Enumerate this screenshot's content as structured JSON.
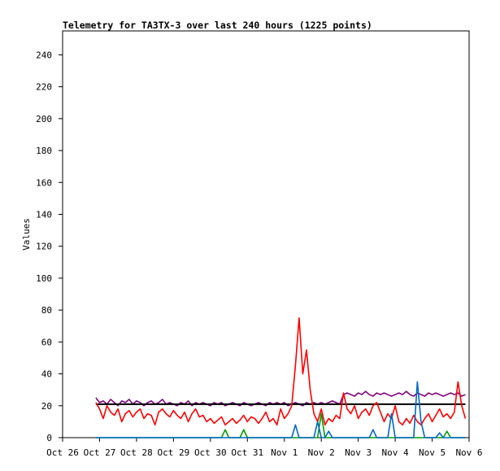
{
  "chart_data": {
    "type": "line",
    "title": "Telemetry for TA3TX-3 over last 240 hours (1225 points)",
    "y_label": "Values",
    "xlim": [
      0,
      11
    ],
    "xticks": [
      {
        "value": 0,
        "label": "Oct 26"
      },
      {
        "value": 1,
        "label": "Oct 27"
      },
      {
        "value": 2,
        "label": "Oct 28"
      },
      {
        "value": 3,
        "label": "Oct 29"
      },
      {
        "value": 4,
        "label": "Oct 30"
      },
      {
        "value": 5,
        "label": "Oct 31"
      },
      {
        "value": 6,
        "label": "Nov 1"
      },
      {
        "value": 7,
        "label": "Nov 2"
      },
      {
        "value": 8,
        "label": "Nov 3"
      },
      {
        "value": 9,
        "label": "Nov 4"
      },
      {
        "value": 10,
        "label": "Nov 5"
      },
      {
        "value": 11,
        "label": "Nov 6"
      }
    ],
    "ylim": [
      0,
      255
    ],
    "yticks": [
      0,
      20,
      40,
      60,
      80,
      100,
      120,
      140,
      160,
      180,
      200,
      220,
      240
    ],
    "x": [
      0.9,
      1,
      1.1,
      1.2,
      1.3,
      1.4,
      1.5,
      1.6,
      1.7,
      1.8,
      1.9,
      2,
      2.1,
      2.2,
      2.3,
      2.4,
      2.5,
      2.6,
      2.7,
      2.8,
      2.9,
      3,
      3.1,
      3.2,
      3.3,
      3.4,
      3.5,
      3.6,
      3.7,
      3.8,
      3.9,
      4,
      4.1,
      4.2,
      4.3,
      4.4,
      4.5,
      4.6,
      4.7,
      4.8,
      4.9,
      5,
      5.1,
      5.2,
      5.3,
      5.4,
      5.5,
      5.6,
      5.7,
      5.8,
      5.9,
      6,
      6.1,
      6.2,
      6.3,
      6.4,
      6.5,
      6.6,
      6.7,
      6.8,
      6.9,
      7,
      7.1,
      7.2,
      7.3,
      7.4,
      7.5,
      7.6,
      7.7,
      7.8,
      7.9,
      8,
      8.1,
      8.2,
      8.3,
      8.4,
      8.5,
      8.6,
      8.7,
      8.8,
      8.9,
      9,
      9.1,
      9.2,
      9.3,
      9.4,
      9.5,
      9.6,
      9.7,
      9.8,
      9.9,
      10,
      10.1,
      10.2,
      10.3,
      10.4,
      10.5,
      10.6,
      10.7,
      10.8,
      10.9
    ],
    "series": [
      {
        "color": "#800080",
        "values": [
          25,
          22,
          23,
          21,
          24,
          22,
          20,
          23,
          22,
          24,
          21,
          23,
          22,
          20,
          22,
          23,
          21,
          22,
          24,
          21,
          22,
          21,
          20,
          22,
          21,
          23,
          20,
          22,
          21,
          22,
          21,
          20,
          22,
          21,
          22,
          20,
          21,
          22,
          21,
          20,
          22,
          21,
          20,
          21,
          22,
          21,
          20,
          22,
          21,
          22,
          21,
          22,
          20,
          21,
          22,
          21,
          20,
          22,
          21,
          22,
          21,
          22,
          21,
          22,
          23,
          22,
          21,
          27,
          28,
          27,
          26,
          28,
          27,
          29,
          27,
          26,
          28,
          27,
          28,
          27,
          26,
          27,
          28,
          27,
          29,
          27,
          26,
          28,
          27,
          26,
          28,
          27,
          28,
          27,
          26,
          27,
          28,
          27,
          28,
          26,
          27
        ]
      },
      {
        "color": "#000000",
        "values": [
          21,
          21,
          21,
          21,
          21,
          21,
          21,
          21,
          21,
          21,
          21,
          21,
          21,
          21,
          21,
          21,
          21,
          21,
          21,
          21,
          21,
          21,
          21,
          21,
          21,
          21,
          21,
          21,
          21,
          21,
          21,
          21,
          21,
          21,
          21,
          21,
          21,
          21,
          21,
          21,
          21,
          21,
          21,
          21,
          21,
          21,
          21,
          21,
          21,
          21,
          21,
          21,
          21,
          21,
          21,
          21,
          21,
          21,
          21,
          21,
          21,
          21,
          21,
          21,
          21,
          21,
          21,
          21,
          21,
          21,
          21,
          21,
          21,
          21,
          21,
          21,
          21,
          21,
          21,
          21,
          21,
          21,
          21,
          21,
          21,
          21,
          21,
          21,
          21,
          21,
          21,
          21,
          21,
          21,
          21,
          21,
          21,
          21,
          21,
          21,
          21
        ]
      },
      {
        "color": "#ff0000",
        "values": [
          22,
          18,
          12,
          20,
          16,
          14,
          18,
          10,
          15,
          17,
          13,
          16,
          18,
          12,
          15,
          14,
          8,
          16,
          18,
          15,
          13,
          17,
          14,
          12,
          16,
          10,
          15,
          18,
          13,
          14,
          10,
          12,
          9,
          11,
          13,
          8,
          10,
          12,
          9,
          11,
          14,
          10,
          13,
          12,
          9,
          12,
          16,
          10,
          12,
          8,
          18,
          12,
          15,
          20,
          45,
          75,
          40,
          55,
          30,
          15,
          10,
          18,
          8,
          12,
          10,
          14,
          12,
          28,
          18,
          15,
          20,
          12,
          16,
          18,
          14,
          20,
          22,
          16,
          10,
          15,
          12,
          20,
          10,
          8,
          12,
          9,
          14,
          10,
          8,
          12,
          15,
          10,
          14,
          18,
          13,
          15,
          12,
          16,
          35,
          20,
          12
        ]
      },
      {
        "color": "#00a000",
        "values": [
          0,
          0,
          0,
          0,
          0,
          0,
          0,
          0,
          0,
          0,
          0,
          0,
          0,
          0,
          0,
          0,
          0,
          0,
          0,
          0,
          0,
          0,
          0,
          0,
          0,
          0,
          0,
          0,
          0,
          0,
          0,
          0,
          0,
          0,
          0,
          5,
          0,
          0,
          0,
          0,
          5,
          0,
          0,
          0,
          0,
          0,
          0,
          0,
          0,
          0,
          0,
          0,
          0,
          0,
          0,
          0,
          0,
          0,
          0,
          0,
          0,
          15,
          0,
          0,
          0,
          0,
          0,
          0,
          0,
          0,
          0,
          0,
          0,
          0,
          0,
          0,
          0,
          0,
          0,
          0,
          0,
          0,
          0,
          0,
          0,
          0,
          0,
          0,
          0,
          0,
          0,
          0,
          0,
          0,
          0,
          4,
          0,
          0,
          0,
          0,
          0
        ]
      },
      {
        "color": "#0066cc",
        "values": [
          0,
          0,
          0,
          0,
          0,
          0,
          0,
          0,
          0,
          0,
          0,
          0,
          0,
          0,
          0,
          0,
          0,
          0,
          0,
          0,
          0,
          0,
          0,
          0,
          0,
          0,
          0,
          0,
          0,
          0,
          0,
          0,
          0,
          0,
          0,
          0,
          0,
          0,
          0,
          0,
          0,
          0,
          0,
          0,
          0,
          0,
          0,
          0,
          0,
          0,
          0,
          0,
          0,
          0,
          8,
          0,
          0,
          0,
          0,
          0,
          10,
          0,
          0,
          4,
          0,
          0,
          0,
          0,
          0,
          0,
          0,
          0,
          0,
          0,
          0,
          5,
          0,
          0,
          0,
          0,
          15,
          0,
          0,
          0,
          0,
          0,
          0,
          35,
          10,
          0,
          0,
          0,
          0,
          3,
          0,
          0,
          0,
          0,
          0,
          0,
          0
        ]
      }
    ]
  }
}
